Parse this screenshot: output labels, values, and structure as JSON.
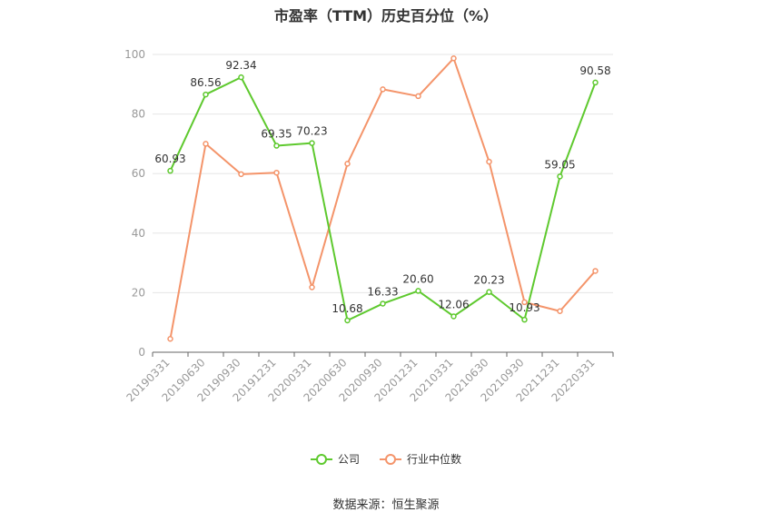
{
  "chart_data": {
    "type": "line",
    "title": "市盈率（TTM）历史百分位（%）",
    "categories": [
      "20190331",
      "20190630",
      "20190930",
      "20191231",
      "20200331",
      "20200630",
      "20200930",
      "20201231",
      "20210331",
      "20210630",
      "20210930",
      "20211231",
      "20220331"
    ],
    "series": [
      {
        "name": "公司",
        "color": "#5ec92e",
        "values": [
          60.93,
          86.56,
          92.34,
          69.35,
          70.23,
          10.68,
          16.33,
          20.6,
          12.06,
          20.23,
          10.93,
          59.05,
          90.58
        ],
        "labels": [
          "60.93",
          "86.56",
          "92.34",
          "69.35",
          "70.23",
          "10.68",
          "16.33",
          "20.60",
          "12.06",
          "20.23",
          "10.93",
          "59.05",
          "90.58"
        ]
      },
      {
        "name": "行业中位数",
        "color": "#f4946a",
        "values": [
          4.5,
          70.0,
          59.8,
          60.3,
          21.8,
          63.3,
          88.3,
          86.0,
          98.7,
          64.0,
          16.8,
          13.8,
          27.3
        ]
      }
    ],
    "ylim": [
      0,
      100
    ],
    "yticks": [
      "0",
      "20",
      "40",
      "60",
      "80",
      "100"
    ],
    "grid": true,
    "legend": "bottom-center"
  },
  "source": "数据来源：恒生聚源"
}
